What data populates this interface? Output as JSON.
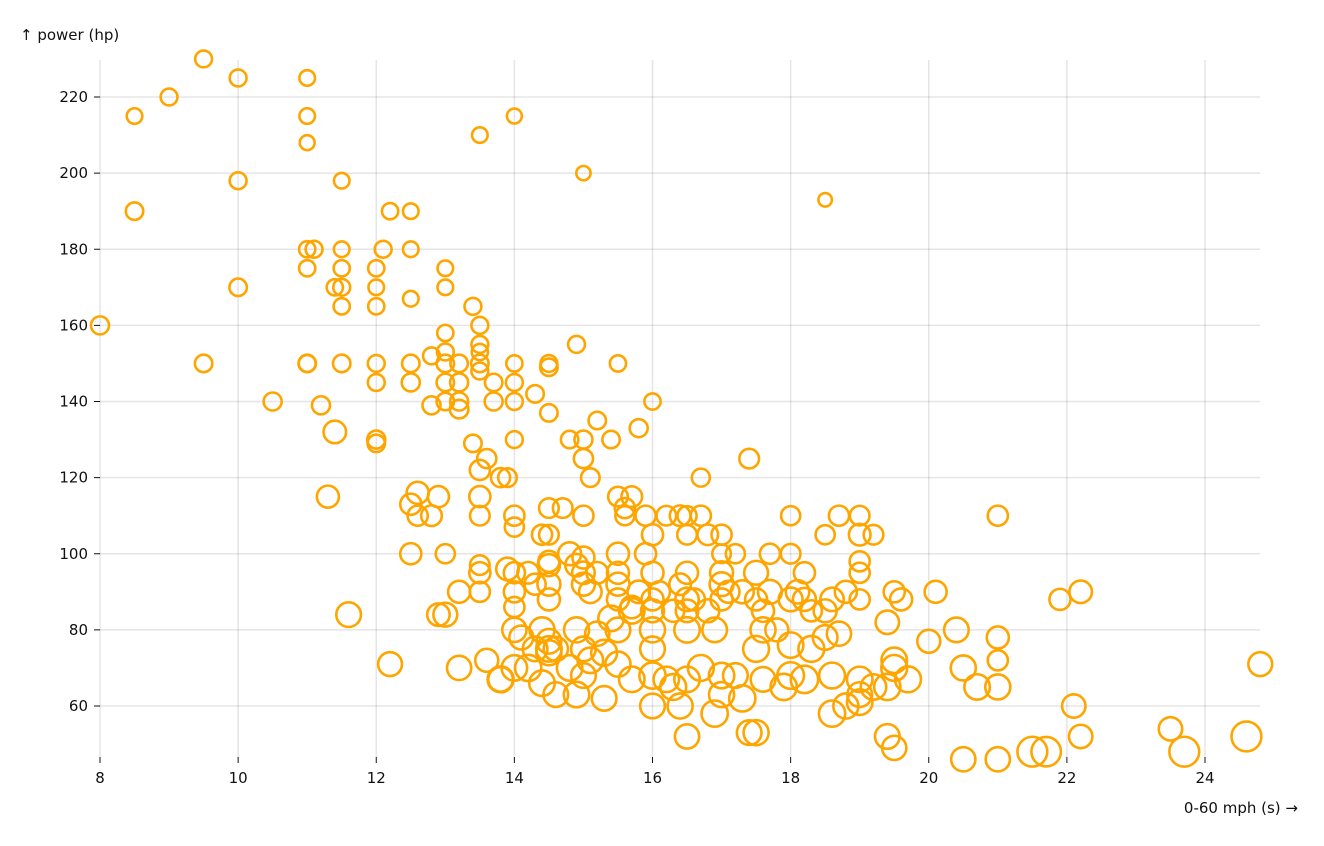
{
  "chart_data": {
    "type": "scatter",
    "xlabel": "0-60 mph (s) →",
    "ylabel": "↑ power (hp)",
    "xlim": [
      8,
      24.8
    ],
    "ylim": [
      46,
      230
    ],
    "x_ticks": [
      8,
      10,
      12,
      14,
      16,
      18,
      20,
      22,
      24
    ],
    "y_ticks": [
      60,
      80,
      100,
      120,
      140,
      160,
      180,
      200,
      220
    ],
    "grid": true,
    "color": "#ffa500",
    "point_fields": [
      "0-60 mph (s)",
      "power (hp)",
      "radius value"
    ],
    "points": [
      [
        9.5,
        230,
        14
      ],
      [
        10,
        225,
        14
      ],
      [
        11,
        225,
        12
      ],
      [
        8.5,
        215,
        12
      ],
      [
        9,
        220,
        14
      ],
      [
        11,
        215,
        12
      ],
      [
        14,
        215,
        11
      ],
      [
        11,
        208,
        11
      ],
      [
        13.5,
        210,
        12
      ],
      [
        15,
        200,
        10
      ],
      [
        10,
        198,
        14
      ],
      [
        11.5,
        198,
        12
      ],
      [
        8.5,
        190,
        15
      ],
      [
        12.2,
        190,
        13
      ],
      [
        12.5,
        190,
        12
      ],
      [
        18.5,
        193,
        9
      ],
      [
        11,
        180,
        13
      ],
      [
        11.1,
        180,
        14
      ],
      [
        11.5,
        180,
        12
      ],
      [
        12.1,
        180,
        14
      ],
      [
        12.5,
        180,
        12
      ],
      [
        11,
        175,
        13
      ],
      [
        11.5,
        175,
        13
      ],
      [
        12,
        175,
        13
      ],
      [
        13,
        175,
        12
      ],
      [
        10,
        170,
        15
      ],
      [
        11.4,
        170,
        13
      ],
      [
        11.5,
        170,
        14
      ],
      [
        12,
        170,
        12
      ],
      [
        13,
        170,
        12
      ],
      [
        8,
        160,
        16
      ],
      [
        11.5,
        165,
        13
      ],
      [
        12,
        165,
        13
      ],
      [
        12.5,
        167,
        12
      ],
      [
        13.4,
        165,
        14
      ],
      [
        13.5,
        160,
        14
      ],
      [
        13,
        158,
        13
      ],
      [
        13.5,
        155,
        14
      ],
      [
        13.5,
        153,
        13
      ],
      [
        13,
        153,
        14
      ],
      [
        12.8,
        152,
        14
      ],
      [
        13,
        150,
        15
      ],
      [
        13.2,
        150,
        15
      ],
      [
        13.5,
        150,
        15
      ],
      [
        13.5,
        148,
        14
      ],
      [
        14,
        150,
        13
      ],
      [
        14.5,
        150,
        14
      ],
      [
        14.5,
        149,
        15
      ],
      [
        11,
        150,
        14
      ],
      [
        11,
        150,
        15
      ],
      [
        11.5,
        150,
        15
      ],
      [
        12,
        150,
        14
      ],
      [
        12.5,
        150,
        15
      ],
      [
        9.5,
        150,
        15
      ],
      [
        14.9,
        155,
        14
      ],
      [
        15.5,
        150,
        13
      ],
      [
        12,
        145,
        14
      ],
      [
        12.5,
        145,
        16
      ],
      [
        13,
        145,
        15
      ],
      [
        13.2,
        145,
        16
      ],
      [
        13.7,
        145,
        15
      ],
      [
        14,
        145,
        14
      ],
      [
        14.3,
        142,
        15
      ],
      [
        10.5,
        140,
        16
      ],
      [
        11.2,
        139,
        16
      ],
      [
        12.8,
        139,
        16
      ],
      [
        13,
        140,
        15
      ],
      [
        13.2,
        140,
        16
      ],
      [
        13.2,
        138,
        17
      ],
      [
        13.7,
        140,
        16
      ],
      [
        14,
        140,
        14
      ],
      [
        14.5,
        137,
        15
      ],
      [
        16,
        140,
        13
      ],
      [
        11.4,
        132,
        25
      ],
      [
        12,
        130,
        16
      ],
      [
        12,
        129,
        15
      ],
      [
        13.4,
        129,
        15
      ],
      [
        14,
        130,
        14
      ],
      [
        14.8,
        130,
        15
      ],
      [
        15,
        130,
        16
      ],
      [
        15.4,
        130,
        15
      ],
      [
        15.2,
        135,
        15
      ],
      [
        15.8,
        133,
        16
      ],
      [
        13.6,
        125,
        18
      ],
      [
        13.5,
        122,
        20
      ],
      [
        13.8,
        120,
        18
      ],
      [
        13.9,
        120,
        17
      ],
      [
        15,
        125,
        18
      ],
      [
        15.1,
        120,
        17
      ],
      [
        16.7,
        120,
        16
      ],
      [
        17.4,
        125,
        19
      ],
      [
        11.3,
        115,
        24
      ],
      [
        12.6,
        116,
        24
      ],
      [
        12.5,
        113,
        22
      ],
      [
        12.9,
        115,
        22
      ],
      [
        13.5,
        115,
        22
      ],
      [
        13.5,
        110,
        19
      ],
      [
        12.6,
        110,
        20
      ],
      [
        12.8,
        110,
        21
      ],
      [
        14,
        110,
        20
      ],
      [
        14,
        107,
        18
      ],
      [
        14.4,
        105,
        20
      ],
      [
        14.5,
        112,
        19
      ],
      [
        14.5,
        105,
        19
      ],
      [
        14.7,
        112,
        19
      ],
      [
        15,
        110,
        20
      ],
      [
        15.5,
        115,
        19
      ],
      [
        15.6,
        112,
        20
      ],
      [
        15.6,
        110,
        18
      ],
      [
        15.7,
        115,
        21
      ],
      [
        15.9,
        110,
        20
      ],
      [
        16,
        105,
        22
      ],
      [
        16.2,
        110,
        19
      ],
      [
        16.4,
        110,
        21
      ],
      [
        16.5,
        110,
        18
      ],
      [
        16.7,
        110,
        20
      ],
      [
        16.5,
        105,
        19
      ],
      [
        16.8,
        105,
        21
      ],
      [
        17,
        105,
        20
      ],
      [
        17,
        100,
        17
      ],
      [
        17.2,
        100,
        18
      ],
      [
        17.7,
        100,
        20
      ],
      [
        18,
        100,
        19
      ],
      [
        18,
        110,
        18
      ],
      [
        18.5,
        105,
        18
      ],
      [
        18.7,
        110,
        20
      ],
      [
        19,
        110,
        19
      ],
      [
        19,
        105,
        23
      ],
      [
        19.2,
        105,
        19
      ],
      [
        21,
        110,
        20
      ],
      [
        12.5,
        100,
        22
      ],
      [
        13,
        100,
        18
      ],
      [
        13.5,
        97,
        19
      ],
      [
        13.5,
        95,
        22
      ],
      [
        13.5,
        90,
        20
      ],
      [
        13.2,
        90,
        24
      ],
      [
        12.9,
        84,
        25
      ],
      [
        13,
        84,
        28
      ],
      [
        11.6,
        84,
        30
      ],
      [
        12.2,
        71,
        28
      ],
      [
        13.2,
        70,
        29
      ],
      [
        13.6,
        72,
        26
      ],
      [
        13.8,
        67,
        30
      ],
      [
        13.9,
        96,
        25
      ],
      [
        14,
        95,
        22
      ],
      [
        14,
        90,
        22
      ],
      [
        14,
        86,
        20
      ],
      [
        14.2,
        95,
        23
      ],
      [
        14.3,
        92,
        22
      ],
      [
        14.5,
        92,
        26
      ],
      [
        14.5,
        88,
        24
      ],
      [
        14.5,
        97,
        24
      ],
      [
        14.5,
        98,
        22
      ],
      [
        14.8,
        100,
        26
      ],
      [
        14.9,
        97,
        25
      ],
      [
        15,
        95,
        25
      ],
      [
        15,
        92,
        26
      ],
      [
        15,
        99,
        24
      ],
      [
        15.2,
        95,
        23
      ],
      [
        15.1,
        90,
        25
      ],
      [
        15.5,
        100,
        24
      ],
      [
        15.5,
        95,
        24
      ],
      [
        15.5,
        92,
        26
      ],
      [
        15.5,
        88,
        24
      ],
      [
        15.7,
        86,
        25
      ],
      [
        15.8,
        90,
        25
      ],
      [
        15.9,
        100,
        22
      ],
      [
        16,
        95,
        24
      ],
      [
        16,
        88,
        24
      ],
      [
        16,
        85,
        26
      ],
      [
        16.1,
        90,
        22
      ],
      [
        16.3,
        85,
        24
      ],
      [
        16.4,
        92,
        23
      ],
      [
        16.5,
        95,
        24
      ],
      [
        16.5,
        88,
        27
      ],
      [
        16.5,
        85,
        25
      ],
      [
        16.6,
        88,
        24
      ],
      [
        16.8,
        85,
        26
      ],
      [
        17,
        92,
        28
      ],
      [
        17,
        88,
        24
      ],
      [
        17,
        95,
        26
      ],
      [
        17.1,
        90,
        24
      ],
      [
        17.3,
        90,
        26
      ],
      [
        17.5,
        88,
        24
      ],
      [
        17.5,
        95,
        28
      ],
      [
        17.6,
        85,
        24
      ],
      [
        17.7,
        90,
        28
      ],
      [
        17.8,
        80,
        26
      ],
      [
        18,
        88,
        28
      ],
      [
        18.1,
        90,
        27
      ],
      [
        18.2,
        88,
        26
      ],
      [
        18.2,
        95,
        22
      ],
      [
        18.3,
        85,
        22
      ],
      [
        18.5,
        85,
        26
      ],
      [
        18.6,
        88,
        27
      ],
      [
        18.8,
        90,
        24
      ],
      [
        19,
        88,
        20
      ],
      [
        19,
        95,
        20
      ],
      [
        19,
        98,
        20
      ],
      [
        19.5,
        90,
        22
      ],
      [
        19.6,
        88,
        24
      ],
      [
        19.4,
        82,
        27
      ],
      [
        20.1,
        90,
        24
      ],
      [
        20.4,
        80,
        30
      ],
      [
        20,
        77,
        26
      ],
      [
        21,
        78,
        24
      ],
      [
        21,
        72,
        20
      ],
      [
        21.9,
        88,
        22
      ],
      [
        22.2,
        90,
        25
      ],
      [
        14,
        80,
        29
      ],
      [
        14.1,
        78,
        28
      ],
      [
        14.3,
        75,
        30
      ],
      [
        14.4,
        80,
        31
      ],
      [
        14.5,
        75,
        32
      ],
      [
        14.5,
        77,
        30
      ],
      [
        14.6,
        75,
        29
      ],
      [
        14.9,
        80,
        31
      ],
      [
        15,
        75,
        30
      ],
      [
        15.2,
        79,
        29
      ],
      [
        15.4,
        83,
        32
      ],
      [
        15.5,
        80,
        30
      ],
      [
        15.7,
        85,
        32
      ],
      [
        16,
        80,
        31
      ],
      [
        16,
        75,
        30
      ],
      [
        16.5,
        80,
        32
      ],
      [
        16.9,
        80,
        30
      ],
      [
        17.5,
        75,
        33
      ],
      [
        17.6,
        80,
        31
      ],
      [
        18,
        76,
        32
      ],
      [
        18.3,
        75,
        33
      ],
      [
        18.5,
        78,
        30
      ],
      [
        18.7,
        79,
        29
      ],
      [
        13.8,
        67,
        33
      ],
      [
        14,
        70,
        32
      ],
      [
        14.2,
        70,
        34
      ],
      [
        14.4,
        66,
        32
      ],
      [
        14.5,
        74,
        31
      ],
      [
        14.6,
        63,
        30
      ],
      [
        14.8,
        70,
        32
      ],
      [
        14.9,
        63,
        32
      ],
      [
        15,
        68,
        30
      ],
      [
        15.1,
        72,
        32
      ],
      [
        15.3,
        62,
        30
      ],
      [
        15.3,
        74,
        33
      ],
      [
        15.5,
        71,
        31
      ],
      [
        15.7,
        67,
        32
      ],
      [
        16,
        68,
        34
      ],
      [
        16,
        60,
        30
      ],
      [
        16.2,
        67,
        32
      ],
      [
        16.3,
        65,
        33
      ],
      [
        16.4,
        60,
        31
      ],
      [
        16.5,
        67,
        32
      ],
      [
        16.5,
        52,
        29
      ],
      [
        16.7,
        70,
        33
      ],
      [
        16.9,
        58,
        34
      ],
      [
        17,
        68,
        32
      ],
      [
        17,
        63,
        31
      ],
      [
        17.2,
        68,
        30
      ],
      [
        17.3,
        62,
        34
      ],
      [
        17.4,
        53,
        30
      ],
      [
        17.5,
        53,
        31
      ],
      [
        17.6,
        67,
        30
      ],
      [
        17.9,
        65,
        34
      ],
      [
        18,
        68,
        35
      ],
      [
        18.2,
        67,
        37
      ],
      [
        18.6,
        58,
        34
      ],
      [
        18.6,
        68,
        33
      ],
      [
        18.8,
        60,
        31
      ],
      [
        19,
        67,
        32
      ],
      [
        19,
        63,
        30
      ],
      [
        19,
        61,
        32
      ],
      [
        19.2,
        65,
        32
      ],
      [
        19.4,
        65,
        34
      ],
      [
        19.5,
        72,
        32
      ],
      [
        19.5,
        70,
        33
      ],
      [
        19.4,
        52,
        30
      ],
      [
        19.5,
        49,
        29
      ],
      [
        19.7,
        67,
        33
      ],
      [
        20.5,
        70,
        31
      ],
      [
        20.7,
        65,
        32
      ],
      [
        21,
        65,
        31
      ],
      [
        20.5,
        46,
        29
      ],
      [
        21,
        46,
        29
      ],
      [
        21.5,
        48,
        44
      ],
      [
        21.7,
        48,
        43
      ],
      [
        22.1,
        60,
        27
      ],
      [
        22.2,
        52,
        27
      ],
      [
        23.5,
        54,
        27
      ],
      [
        23.7,
        48,
        44
      ],
      [
        24.6,
        52,
        44
      ],
      [
        24.8,
        71,
        28
      ]
    ]
  }
}
